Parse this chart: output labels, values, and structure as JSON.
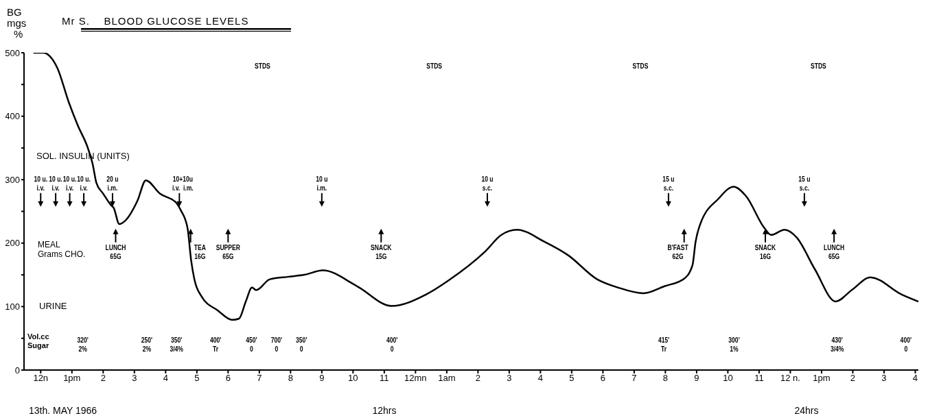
{
  "chart_data": {
    "type": "line",
    "title": "Mr S.    BLOOD GLUCOSE LEVELS",
    "ylabel": "BG\nmgs\n%",
    "series": [
      {
        "color": "#000000",
        "x": [
          "1966-05-13T11:46",
          "1966-05-13T12:05",
          "1966-05-13T12:17",
          "1966-05-13T12:32",
          "1966-05-13T12:54",
          "1966-05-13T13:11",
          "1966-05-13T13:31",
          "1966-05-13T13:40",
          "1966-05-13T13:47",
          "1966-05-13T14:00",
          "1966-05-13T14:16",
          "1966-05-13T14:20",
          "1966-05-13T14:31",
          "1966-05-13T14:42",
          "1966-05-13T15:06",
          "1966-05-13T15:22",
          "1966-05-13T15:49",
          "1966-05-13T16:21",
          "1966-05-13T16:29",
          "1966-05-13T16:42",
          "1966-05-13T16:49",
          "1966-05-13T16:55",
          "1966-05-13T17:09",
          "1966-05-13T17:40",
          "1966-05-13T18:08",
          "1966-05-13T18:21",
          "1966-05-13T18:34",
          "1966-05-13T18:46",
          "1966-05-13T18:54",
          "1966-05-13T19:20",
          "1966-05-13T19:56",
          "1966-05-13T20:26",
          "1966-05-13T21:02",
          "1966-05-13T22:08",
          "1966-05-13T23:14",
          "1966-05-14T00:20",
          "1966-05-14T01:03",
          "1966-05-14T02:14",
          "1966-05-14T02:45",
          "1966-05-14T03:15",
          "1966-05-14T04:08",
          "1966-05-14T04:53",
          "1966-05-14T05:49",
          "1966-05-14T06:29",
          "1966-05-14T07:18",
          "1966-05-14T07:58",
          "1966-05-14T08:36",
          "1966-05-14T08:52",
          "1966-05-14T08:58",
          "1966-05-14T09:07",
          "1966-05-14T09:42",
          "1966-05-14T10:11",
          "1966-05-14T10:35",
          "1966-05-14T11:10",
          "1966-05-14T11:23",
          "1966-05-14T11:49",
          "1966-05-14T12:12",
          "1966-05-14T12:47",
          "1966-05-14T13:27",
          "1966-05-14T13:58",
          "1966-05-14T14:34",
          "1966-05-14T15:34",
          "1966-05-14T16:06"
        ],
        "values": [
          500,
          500,
          495,
          476,
          422,
          386,
          349,
          324,
          295,
          278,
          259,
          256,
          230,
          235,
          267,
          299,
          278,
          263,
          252,
          224,
          173,
          144,
          116,
          94,
          79,
          81,
          108,
          130,
          126,
          143,
          147,
          150,
          157,
          132,
          101,
          119,
          141,
          187,
          213,
          221,
          202,
          181,
          143,
          130,
          121,
          132,
          144,
          165,
          202,
          230,
          270,
          289,
          274,
          224,
          213,
          221,
          209,
          159,
          108,
          126,
          146,
          119,
          108
        ]
      }
    ],
    "xlim": [
      "1966-05-13T11:28",
      "1966-05-14T16:06"
    ],
    "xticks": [
      {
        "value": "1966-05-13T12:00",
        "label": "12n"
      },
      {
        "value": "1966-05-13T13:00",
        "label": "1pm"
      },
      {
        "value": "1966-05-13T14:00",
        "label": "2"
      },
      {
        "value": "1966-05-13T15:00",
        "label": "3"
      },
      {
        "value": "1966-05-13T16:00",
        "label": "4"
      },
      {
        "value": "1966-05-13T17:00",
        "label": "5"
      },
      {
        "value": "1966-05-13T18:00",
        "label": "6"
      },
      {
        "value": "1966-05-13T19:00",
        "label": "7"
      },
      {
        "value": "1966-05-13T20:00",
        "label": "8"
      },
      {
        "value": "1966-05-13T21:00",
        "label": "9"
      },
      {
        "value": "1966-05-13T22:00",
        "label": "10"
      },
      {
        "value": "1966-05-13T23:00",
        "label": "11"
      },
      {
        "value": "1966-05-14T00:00",
        "label": "12mn"
      },
      {
        "value": "1966-05-14T01:00",
        "label": "1am"
      },
      {
        "value": "1966-05-14T02:00",
        "label": "2"
      },
      {
        "value": "1966-05-14T03:00",
        "label": "3"
      },
      {
        "value": "1966-05-14T04:00",
        "label": "4"
      },
      {
        "value": "1966-05-14T05:00",
        "label": "5"
      },
      {
        "value": "1966-05-14T06:00",
        "label": "6"
      },
      {
        "value": "1966-05-14T07:00",
        "label": "7"
      },
      {
        "value": "1966-05-14T08:00",
        "label": "8"
      },
      {
        "value": "1966-05-14T09:00",
        "label": "9"
      },
      {
        "value": "1966-05-14T10:00",
        "label": "10"
      },
      {
        "value": "1966-05-14T11:00",
        "label": "11"
      },
      {
        "value": "1966-05-14T12:00",
        "label": "12 n."
      },
      {
        "value": "1966-05-14T13:00",
        "label": "1pm"
      },
      {
        "value": "1966-05-14T14:00",
        "label": "2"
      },
      {
        "value": "1966-05-14T15:00",
        "label": "3"
      },
      {
        "value": "1966-05-14T16:00",
        "label": "4"
      }
    ],
    "ylim": [
      0,
      500
    ],
    "yticks": [
      0,
      {
        "value": 50,
        "label": null
      },
      100,
      {
        "value": 150,
        "label": null
      },
      200,
      {
        "value": 250,
        "label": null
      },
      300,
      {
        "value": 350,
        "label": null
      },
      400,
      {
        "value": 450,
        "label": null
      },
      500
    ],
    "marker": "none",
    "line_style": "solid",
    "annotations": [
      "10 u.\ni.v.",
      "10 u.\ni.v.",
      "10 u.\ni.v.",
      "10 u.\ni.v.",
      "20 u\ni.m.",
      "10+10u\ni.v.  i.m.",
      "10 u\ni.m.",
      "10 u\ns.c.",
      "15 u\ns.c.",
      "15 u\ns.c.",
      "LUNCH\n65G",
      "TEA\n16G",
      "SUPPER\n65G",
      "SNACK\n15G",
      "B'FAST\n62G",
      "SNACK\n16G",
      "LUNCH\n65G",
      "320'\n2%",
      "250'\n2%",
      "350'\n3/4%",
      "400'\nTr",
      "450'\n0",
      "700'\n0",
      "350'\n0",
      "400'\n0",
      "415'\nTr",
      "300'\n1%",
      "430'\n3/4%",
      "400'\n0",
      "STDS",
      "STDS",
      "STDS",
      "STDS",
      "SOL. INSULIN (UNITS)",
      "MEAL\nGrams CHO.",
      "URINE",
      "Vol.cc\nSugar",
      "13th. MAY 1966",
      "12hrs",
      "24hrs"
    ]
  }
}
